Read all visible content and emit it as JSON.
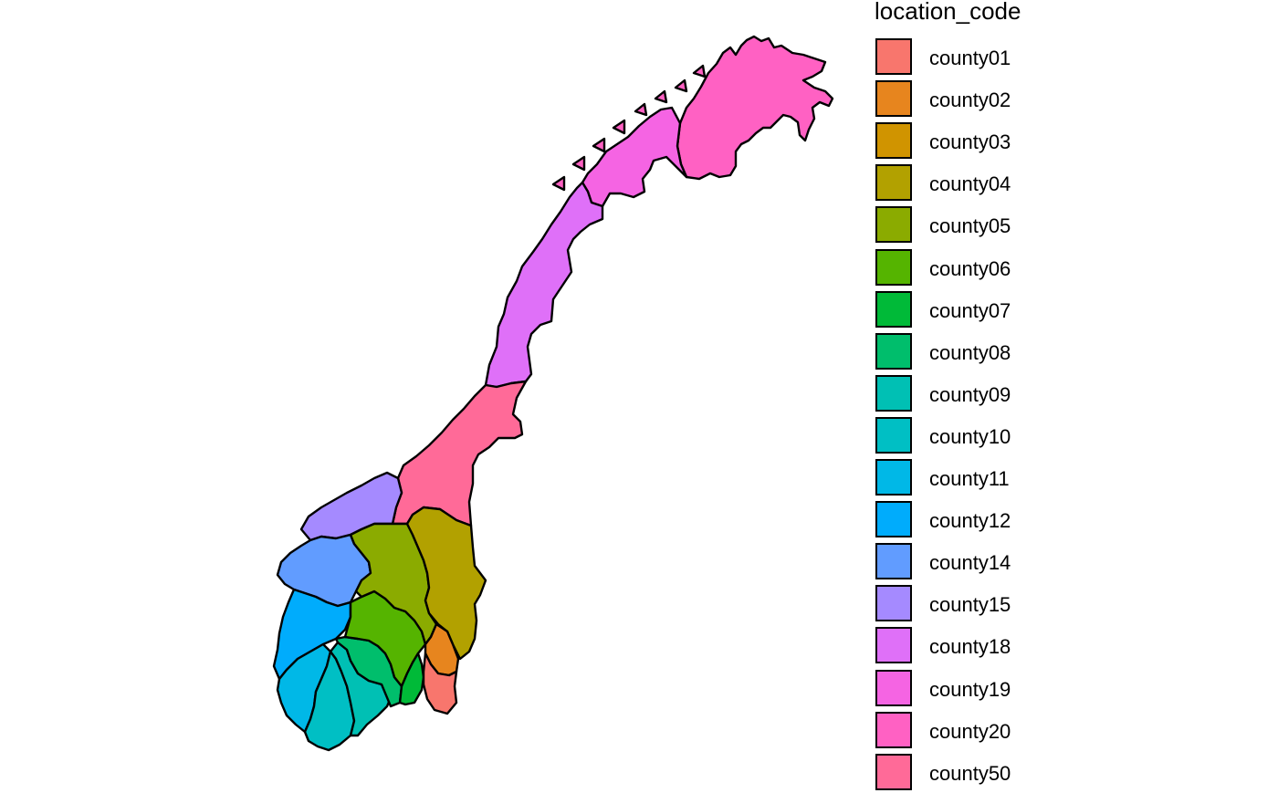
{
  "legend": {
    "title": "location_code",
    "items": [
      {
        "label": "county01",
        "color": "#F8766D"
      },
      {
        "label": "county02",
        "color": "#E7851E"
      },
      {
        "label": "county03",
        "color": "#D09400"
      },
      {
        "label": "county04",
        "color": "#B2A100"
      },
      {
        "label": "county05",
        "color": "#8BAB00"
      },
      {
        "label": "county06",
        "color": "#55B400"
      },
      {
        "label": "county07",
        "color": "#00BA38"
      },
      {
        "label": "county08",
        "color": "#00BE6C"
      },
      {
        "label": "county09",
        "color": "#00C0B4"
      },
      {
        "label": "county10",
        "color": "#00BFC4"
      },
      {
        "label": "county11",
        "color": "#00B8E7"
      },
      {
        "label": "county12",
        "color": "#00ACFC"
      },
      {
        "label": "county14",
        "color": "#619CFF"
      },
      {
        "label": "county15",
        "color": "#A58AFF"
      },
      {
        "label": "county18",
        "color": "#DF70F8"
      },
      {
        "label": "county19",
        "color": "#F564E3"
      },
      {
        "label": "county20",
        "color": "#FF61C3"
      },
      {
        "label": "county50",
        "color": "#FF6A98"
      }
    ]
  }
}
